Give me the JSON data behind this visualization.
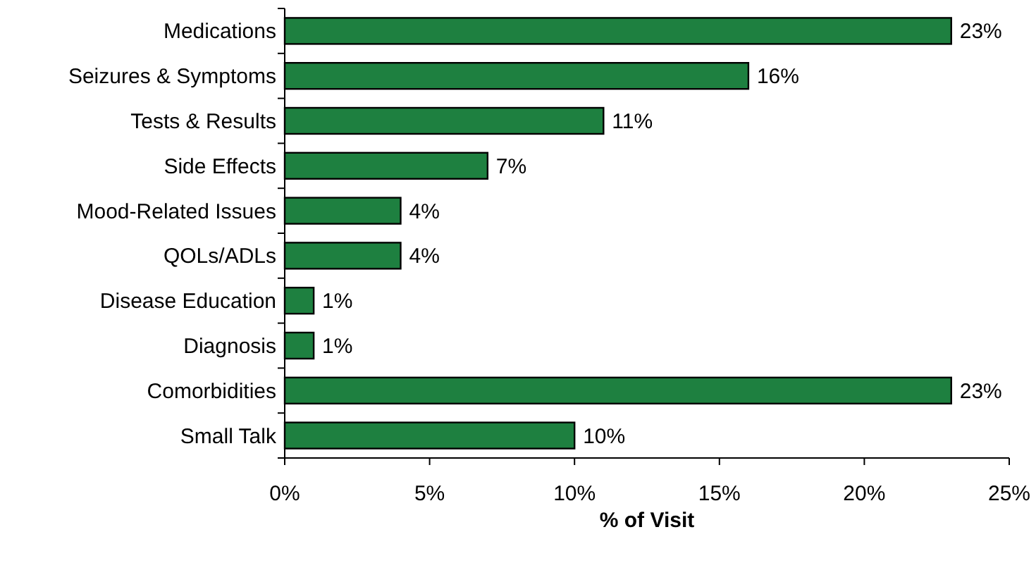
{
  "chart_data": {
    "type": "bar",
    "orientation": "horizontal",
    "xlabel": "% of Visit",
    "categories": [
      "Medications",
      "Seizures & Symptoms",
      "Tests & Results",
      "Side Effects",
      "Mood-Related Issues",
      "QOLs/ADLs",
      "Disease Education",
      "Diagnosis",
      "Comorbidities",
      "Small Talk"
    ],
    "values": [
      23,
      16,
      11,
      7,
      4,
      4,
      1,
      1,
      23,
      10
    ],
    "value_labels": [
      "23%",
      "16%",
      "11%",
      "7%",
      "4%",
      "4%",
      "1%",
      "1%",
      "23%",
      "10%"
    ],
    "color": "#1e8040",
    "xlim": [
      0,
      25
    ],
    "xticks": [
      {
        "value": 0,
        "label": "0%"
      },
      {
        "value": 5,
        "label": "5%"
      },
      {
        "value": 10,
        "label": "10%"
      },
      {
        "value": 15,
        "label": "15%"
      },
      {
        "value": 20,
        "label": "20%"
      },
      {
        "value": 25,
        "label": "25%"
      }
    ],
    "grid": false
  }
}
